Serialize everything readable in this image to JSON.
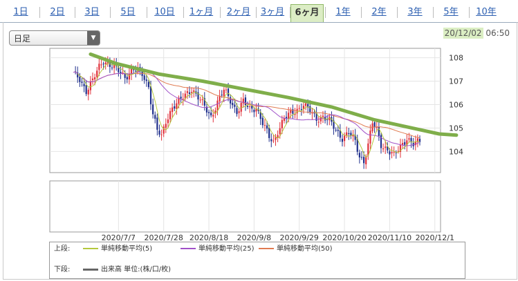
{
  "tabs": [
    {
      "label": "1日",
      "active": false
    },
    {
      "label": "2日",
      "active": false
    },
    {
      "label": "3日",
      "active": false
    },
    {
      "label": "5日",
      "active": false
    },
    {
      "label": "10日",
      "active": false
    },
    {
      "label": "1ヶ月",
      "active": false
    },
    {
      "label": "2ヶ月",
      "active": false
    },
    {
      "label": "3ヶ月",
      "active": false
    },
    {
      "label": "6ヶ月",
      "active": true
    },
    {
      "label": "1年",
      "active": false
    },
    {
      "label": "2年",
      "active": false
    },
    {
      "label": "3年",
      "active": false
    },
    {
      "label": "5年",
      "active": false
    },
    {
      "label": "10年",
      "active": false
    }
  ],
  "controls": {
    "period_select": "日足"
  },
  "timestamp": {
    "date": "20/12/02",
    "time": "06:50"
  },
  "legend": {
    "upper_label": "上段:",
    "lower_label": "下段:",
    "ma5": "単純移動平均(5)",
    "ma25": "単純移動平均(25)",
    "ma50": "単純移動平均(50)",
    "volume": "出来高 単位:(株/口/枚)"
  },
  "colors": {
    "up": "#e0303a",
    "down": "#1f2f8c",
    "ma5": "#b4c83c",
    "ma25": "#a050c8",
    "ma50": "#e07a50",
    "trend": "#7fae4a",
    "volume": "#666666"
  },
  "chart_data": {
    "type": "candlestick",
    "title": "",
    "xlabel": "",
    "ylabel": "",
    "ylim": [
      103.1,
      108.4
    ],
    "yticks": [
      104,
      105,
      106,
      107,
      108
    ],
    "x_tick_labels": [
      "2020/7/7",
      "2020/7/28",
      "2020/8/18",
      "2020/9/8",
      "2020/9/29",
      "2020/10/20",
      "2020/11/10",
      "2020/12/1"
    ],
    "x_tick_index": [
      21,
      42,
      63,
      84,
      105,
      126,
      147,
      168
    ],
    "num_days": 170,
    "anchors_close": [
      [
        0,
        107.3
      ],
      [
        3,
        107.1
      ],
      [
        6,
        106.6
      ],
      [
        9,
        107.0
      ],
      [
        12,
        107.6
      ],
      [
        14,
        107.9
      ],
      [
        17,
        107.7
      ],
      [
        20,
        107.5
      ],
      [
        24,
        107.2
      ],
      [
        28,
        107.5
      ],
      [
        32,
        107.3
      ],
      [
        35,
        106.8
      ],
      [
        37,
        105.6
      ],
      [
        39,
        104.9
      ],
      [
        41,
        104.6
      ],
      [
        43,
        105.3
      ],
      [
        46,
        105.9
      ],
      [
        49,
        106.1
      ],
      [
        52,
        106.4
      ],
      [
        55,
        106.7
      ],
      [
        58,
        106.3
      ],
      [
        61,
        105.9
      ],
      [
        64,
        105.5
      ],
      [
        67,
        106.1
      ],
      [
        70,
        106.6
      ],
      [
        73,
        106.2
      ],
      [
        76,
        105.7
      ],
      [
        79,
        106.1
      ],
      [
        82,
        105.8
      ],
      [
        85,
        105.9
      ],
      [
        88,
        105.2
      ],
      [
        91,
        104.6
      ],
      [
        93,
        104.4
      ],
      [
        95,
        104.9
      ],
      [
        98,
        105.4
      ],
      [
        101,
        105.6
      ],
      [
        104,
        105.8
      ],
      [
        107,
        106.0
      ],
      [
        110,
        105.7
      ],
      [
        113,
        105.4
      ],
      [
        116,
        105.5
      ],
      [
        119,
        105.3
      ],
      [
        122,
        104.9
      ],
      [
        125,
        104.6
      ],
      [
        128,
        104.8
      ],
      [
        131,
        104.4
      ],
      [
        133,
        103.8
      ],
      [
        135,
        103.6
      ],
      [
        137,
        104.3
      ],
      [
        139,
        105.2
      ],
      [
        141,
        104.9
      ],
      [
        143,
        104.3
      ],
      [
        146,
        104.1
      ],
      [
        149,
        103.8
      ],
      [
        152,
        104.2
      ],
      [
        155,
        104.6
      ],
      [
        158,
        104.3
      ],
      [
        161,
        104.4
      ]
    ],
    "trendline": [
      [
        8,
        108.15
      ],
      [
        11,
        108.05
      ],
      [
        20,
        107.75
      ],
      [
        40,
        107.3
      ],
      [
        60,
        107.0
      ],
      [
        80,
        106.65
      ],
      [
        100,
        106.3
      ],
      [
        120,
        105.9
      ],
      [
        140,
        105.35
      ],
      [
        160,
        104.95
      ],
      [
        170,
        104.75
      ],
      [
        178,
        104.7
      ]
    ]
  }
}
